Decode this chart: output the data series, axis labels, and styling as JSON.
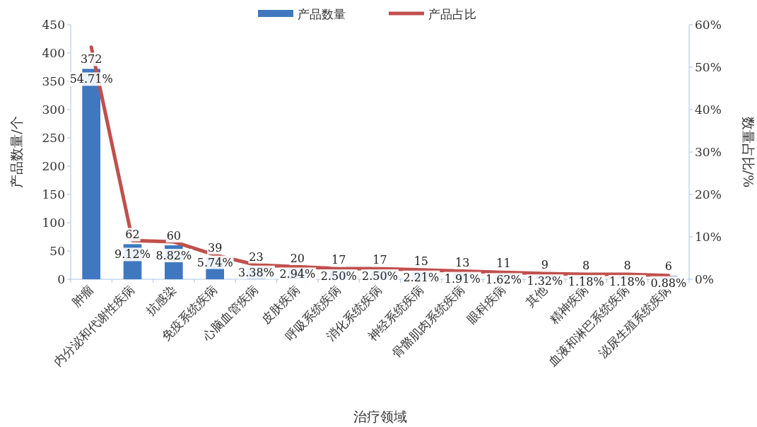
{
  "chart_data": {
    "type": "bar",
    "xlabel": "治疗领域",
    "ylabel": "产品数量/个",
    "y2label": "数量占比/%",
    "categories": [
      "肿瘤",
      "内分泌和代谢性疾病",
      "抗感染",
      "免疫系统疾病",
      "心脑血管疾病",
      "皮肤疾病",
      "呼吸系统疾病",
      "消化系统疾病",
      "神经系统疾病",
      "骨骼肌肉系统疾病",
      "眼科疾病",
      "其他",
      "精神疾病",
      "血液和淋巴系统疾病",
      "泌尿生殖系统疾病"
    ],
    "series": [
      {
        "name": "产品数量",
        "color": "#3f78bf",
        "values": [
          372,
          62,
          60,
          39,
          23,
          20,
          17,
          17,
          15,
          13,
          11,
          9,
          8,
          8,
          6
        ],
        "value_labels": [
          "372",
          "62",
          "60",
          "39",
          "23",
          "20",
          "17",
          "17",
          "15",
          "13",
          "11",
          "9",
          "8",
          "8",
          "6"
        ]
      },
      {
        "name": "产品占比",
        "type": "line",
        "axis": "y2",
        "color": "#c0504d",
        "values": [
          54.71,
          9.12,
          8.82,
          5.74,
          3.38,
          2.94,
          2.5,
          2.5,
          2.21,
          1.91,
          1.62,
          1.32,
          1.18,
          1.18,
          0.88
        ],
        "value_labels": [
          "54.71%",
          "9.12%",
          "8.82%",
          "5.74%",
          "3.38%",
          "2.94%",
          "2.50%",
          "2.50%",
          "2.21%",
          "1.91%",
          "1.62%",
          "1.32%",
          "1.18%",
          "1.18%",
          "0.88%"
        ]
      }
    ],
    "ylim": [
      0,
      450
    ],
    "yticks": [
      0,
      50,
      100,
      150,
      200,
      250,
      300,
      350,
      400,
      450
    ],
    "y2lim": [
      0,
      60
    ],
    "y2ticks": [
      {
        "value": 0,
        "label": "0%"
      },
      {
        "value": 10,
        "label": "10%"
      },
      {
        "value": 20,
        "label": "20%"
      },
      {
        "value": 30,
        "label": "30%"
      },
      {
        "value": 40,
        "label": "40%"
      },
      {
        "value": 50,
        "label": "50%"
      },
      {
        "value": 60,
        "label": "60%"
      }
    ],
    "legend": "top",
    "grid": false
  }
}
